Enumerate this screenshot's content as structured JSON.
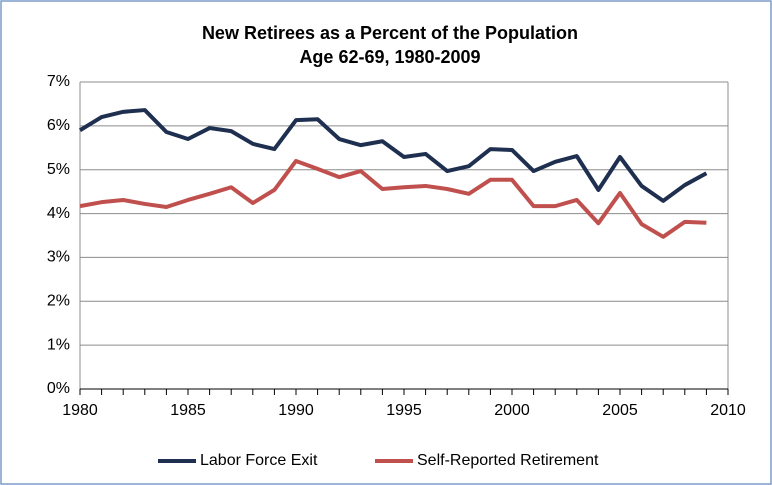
{
  "chart_data": {
    "type": "line",
    "title": "New Retirees as a Percent of the Population",
    "subtitle": "Age 62-69, 1980-2009",
    "x": [
      1980,
      1981,
      1982,
      1983,
      1984,
      1985,
      1986,
      1987,
      1988,
      1989,
      1990,
      1991,
      1992,
      1993,
      1994,
      1995,
      1996,
      1997,
      1998,
      1999,
      2000,
      2001,
      2002,
      2003,
      2004,
      2005,
      2006,
      2007,
      2008,
      2009
    ],
    "series": [
      {
        "name": "Labor Force Exit",
        "color": "#1f2f4f",
        "values": [
          5.9,
          6.2,
          6.32,
          6.36,
          5.86,
          5.7,
          5.95,
          5.88,
          5.59,
          5.47,
          6.13,
          6.15,
          5.7,
          5.56,
          5.65,
          5.29,
          5.36,
          4.97,
          5.08,
          5.47,
          5.45,
          4.97,
          5.18,
          5.31,
          4.54,
          5.29,
          4.63,
          4.29,
          4.65,
          4.92
        ]
      },
      {
        "name": "Self-Reported Retirement",
        "color": "#c0504d",
        "values": [
          4.17,
          4.26,
          4.31,
          4.22,
          4.15,
          4.31,
          4.45,
          4.6,
          4.24,
          4.54,
          5.2,
          5.02,
          4.83,
          4.97,
          4.56,
          4.6,
          4.63,
          4.56,
          4.45,
          4.77,
          4.77,
          4.17,
          4.17,
          4.31,
          3.78,
          4.47,
          3.76,
          3.47,
          3.81,
          3.79
        ]
      }
    ],
    "xlim": [
      1980,
      2010
    ],
    "xticks": [
      1980,
      1985,
      1990,
      1995,
      2000,
      2005,
      2010
    ],
    "ylim": [
      0,
      7
    ],
    "yticks": [
      {
        "value": 0,
        "label": "0%"
      },
      {
        "value": 1,
        "label": "1%"
      },
      {
        "value": 2,
        "label": "2%"
      },
      {
        "value": 3,
        "label": "3%"
      },
      {
        "value": 4,
        "label": "4%"
      },
      {
        "value": 5,
        "label": "5%"
      },
      {
        "value": 6,
        "label": "6%"
      },
      {
        "value": 7,
        "label": "7%"
      }
    ],
    "grid": true,
    "legend": "bottom"
  }
}
